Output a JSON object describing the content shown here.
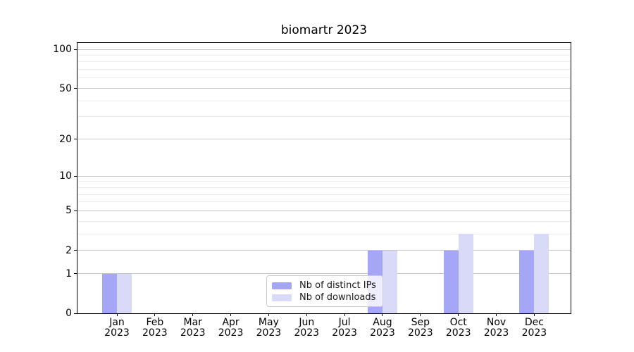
{
  "chart_data": {
    "type": "bar",
    "title": "biomartr 2023",
    "x_ticks": [
      {
        "month": "Jan",
        "year": "2023"
      },
      {
        "month": "Feb",
        "year": "2023"
      },
      {
        "month": "Mar",
        "year": "2023"
      },
      {
        "month": "Apr",
        "year": "2023"
      },
      {
        "month": "May",
        "year": "2023"
      },
      {
        "month": "Jun",
        "year": "2023"
      },
      {
        "month": "Jul",
        "year": "2023"
      },
      {
        "month": "Aug",
        "year": "2023"
      },
      {
        "month": "Sep",
        "year": "2023"
      },
      {
        "month": "Oct",
        "year": "2023"
      },
      {
        "month": "Nov",
        "year": "2023"
      },
      {
        "month": "Dec",
        "year": "2023"
      }
    ],
    "series": [
      {
        "name": "Nb of distinct IPs",
        "color": "#a6a6f6",
        "values": [
          1,
          0,
          0,
          0,
          0,
          0,
          0,
          2,
          0,
          2,
          0,
          2
        ]
      },
      {
        "name": "Nb of downloads",
        "color": "#d9d9f8",
        "values": [
          1,
          0,
          0,
          0,
          0,
          0,
          0,
          2,
          0,
          3,
          0,
          3
        ]
      }
    ],
    "y_scale": "log1p",
    "ylim": [
      0,
      100
    ],
    "y_major_ticks": [
      0,
      1,
      2,
      5,
      10,
      20,
      50,
      100
    ],
    "y_minor_gridlines": [
      3,
      4,
      6,
      7,
      8,
      9,
      30,
      40,
      60,
      70,
      80,
      90
    ],
    "grid": true,
    "legend_position": "lower center"
  }
}
